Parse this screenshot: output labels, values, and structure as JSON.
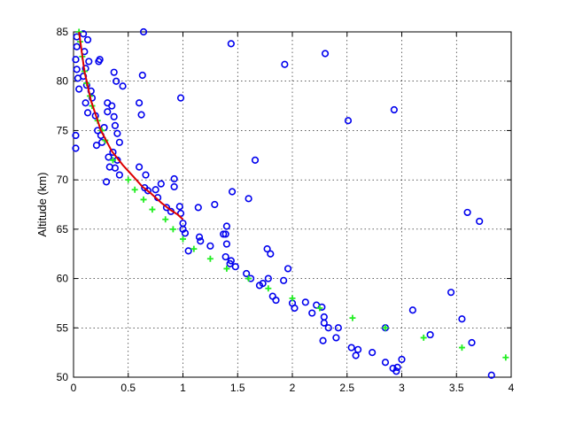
{
  "chart_data": {
    "type": "scatter",
    "title": "",
    "xlabel": "",
    "ylabel": "Altitude  (km)",
    "xlim": [
      0,
      4
    ],
    "ylim": [
      50,
      85
    ],
    "xticks": [
      0,
      0.5,
      1,
      1.5,
      2,
      2.5,
      3,
      3.5,
      4
    ],
    "yticks": [
      50,
      55,
      60,
      65,
      70,
      75,
      80,
      85
    ],
    "xtick_labels": [
      "0",
      "0.5",
      "1",
      "1.5",
      "2",
      "2.5",
      "3",
      "3.5",
      "4"
    ],
    "ytick_labels": [
      "50",
      "55",
      "60",
      "65",
      "70",
      "75",
      "80",
      "85"
    ],
    "grid": true,
    "legend": "none",
    "series": [
      {
        "marker": "circle",
        "color": "#0000ee",
        "points": [
          [
            0.03,
            84.5
          ],
          [
            0.03,
            83.5
          ],
          [
            0.02,
            82.2
          ],
          [
            0.03,
            81.2
          ],
          [
            0.04,
            80.3
          ],
          [
            0.05,
            79.2
          ],
          [
            0.02,
            74.5
          ],
          [
            0.02,
            73.2
          ],
          [
            0.09,
            84.8
          ],
          [
            0.1,
            83.0
          ],
          [
            0.13,
            84.2
          ],
          [
            0.14,
            82.0
          ],
          [
            0.11,
            81.3
          ],
          [
            0.09,
            80.5
          ],
          [
            0.12,
            79.6
          ],
          [
            0.16,
            79.0
          ],
          [
            0.17,
            78.3
          ],
          [
            0.11,
            77.8
          ],
          [
            0.13,
            76.8
          ],
          [
            0.2,
            76.5
          ],
          [
            0.22,
            75.0
          ],
          [
            0.28,
            75.3
          ],
          [
            0.25,
            74.5
          ],
          [
            0.21,
            73.5
          ],
          [
            0.26,
            73.8
          ],
          [
            0.23,
            82.0
          ],
          [
            0.24,
            82.2
          ],
          [
            0.31,
            77.8
          ],
          [
            0.35,
            77.5
          ],
          [
            0.31,
            76.9
          ],
          [
            0.37,
            76.4
          ],
          [
            0.38,
            75.5
          ],
          [
            0.4,
            74.7
          ],
          [
            0.42,
            73.8
          ],
          [
            0.36,
            72.8
          ],
          [
            0.32,
            72.3
          ],
          [
            0.33,
            71.3
          ],
          [
            0.4,
            72.0
          ],
          [
            0.38,
            71.2
          ],
          [
            0.42,
            70.5
          ],
          [
            0.3,
            69.8
          ],
          [
            0.37,
            80.9
          ],
          [
            0.39,
            80.0
          ],
          [
            0.45,
            79.5
          ],
          [
            0.64,
            85.0
          ],
          [
            0.63,
            80.6
          ],
          [
            0.98,
            78.3
          ],
          [
            0.6,
            77.8
          ],
          [
            0.62,
            76.6
          ],
          [
            0.6,
            71.3
          ],
          [
            0.66,
            70.5
          ],
          [
            0.65,
            69.2
          ],
          [
            0.68,
            68.9
          ],
          [
            0.75,
            69.0
          ],
          [
            0.8,
            69.6
          ],
          [
            0.77,
            68.2
          ],
          [
            0.85,
            67.2
          ],
          [
            0.89,
            66.8
          ],
          [
            0.92,
            69.3
          ],
          [
            0.92,
            70.1
          ],
          [
            0.97,
            67.3
          ],
          [
            0.98,
            66.6
          ],
          [
            1.0,
            65.6
          ],
          [
            1.0,
            65.0
          ],
          [
            1.02,
            64.6
          ],
          [
            1.05,
            62.8
          ],
          [
            1.15,
            64.2
          ],
          [
            1.16,
            63.8
          ],
          [
            1.14,
            67.2
          ],
          [
            1.25,
            63.3
          ],
          [
            1.29,
            67.5
          ],
          [
            1.37,
            64.5
          ],
          [
            1.4,
            65.3
          ],
          [
            1.39,
            64.5
          ],
          [
            1.4,
            63.5
          ],
          [
            1.39,
            62.2
          ],
          [
            1.44,
            61.8
          ],
          [
            1.43,
            61.5
          ],
          [
            1.45,
            68.8
          ],
          [
            1.48,
            61.2
          ],
          [
            1.44,
            83.8
          ],
          [
            1.58,
            60.5
          ],
          [
            1.6,
            68.1
          ],
          [
            1.66,
            72.0
          ],
          [
            1.62,
            60.0
          ],
          [
            1.7,
            59.3
          ],
          [
            1.73,
            59.5
          ],
          [
            1.78,
            60.0
          ],
          [
            1.77,
            63.0
          ],
          [
            1.8,
            62.5
          ],
          [
            1.82,
            58.2
          ],
          [
            1.85,
            57.8
          ],
          [
            1.92,
            59.8
          ],
          [
            1.96,
            61.0
          ],
          [
            1.93,
            81.7
          ],
          [
            2.0,
            57.5
          ],
          [
            2.02,
            57.0
          ],
          [
            2.12,
            57.6
          ],
          [
            2.18,
            56.5
          ],
          [
            2.22,
            57.3
          ],
          [
            2.27,
            57.1
          ],
          [
            2.3,
            82.8
          ],
          [
            2.29,
            56.1
          ],
          [
            2.29,
            55.5
          ],
          [
            2.33,
            55.0
          ],
          [
            2.4,
            54.0
          ],
          [
            2.42,
            55.0
          ],
          [
            2.28,
            53.7
          ],
          [
            2.51,
            76.0
          ],
          [
            2.54,
            53.0
          ],
          [
            2.58,
            52.2
          ],
          [
            2.6,
            52.8
          ],
          [
            2.73,
            52.5
          ],
          [
            2.85,
            55.0
          ],
          [
            2.85,
            51.5
          ],
          [
            2.93,
            77.1
          ],
          [
            2.92,
            50.9
          ],
          [
            2.95,
            50.6
          ],
          [
            2.96,
            51.0
          ],
          [
            3.0,
            51.8
          ],
          [
            3.1,
            56.8
          ],
          [
            3.26,
            54.3
          ],
          [
            3.45,
            58.6
          ],
          [
            3.55,
            55.9
          ],
          [
            3.6,
            66.7
          ],
          [
            3.64,
            53.5
          ],
          [
            3.71,
            65.8
          ],
          [
            3.82,
            50.2
          ]
        ]
      },
      {
        "marker": "plus",
        "color": "#22ee22",
        "points": [
          [
            0.05,
            85.0
          ],
          [
            0.06,
            84.0
          ],
          [
            0.08,
            82.5
          ],
          [
            0.1,
            81.0
          ],
          [
            0.12,
            79.8
          ],
          [
            0.15,
            78.5
          ],
          [
            0.17,
            77.5
          ],
          [
            0.22,
            76.0
          ],
          [
            0.26,
            75.0
          ],
          [
            0.29,
            74.0
          ],
          [
            0.36,
            72.0
          ],
          [
            0.5,
            70.0
          ],
          [
            0.56,
            69.0
          ],
          [
            0.64,
            68.0
          ],
          [
            0.72,
            67.0
          ],
          [
            0.84,
            66.0
          ],
          [
            0.91,
            65.0
          ],
          [
            1.0,
            64.0
          ],
          [
            1.1,
            63.0
          ],
          [
            1.25,
            62.0
          ],
          [
            1.4,
            61.0
          ],
          [
            1.6,
            60.0
          ],
          [
            1.78,
            59.0
          ],
          [
            2.0,
            58.0
          ],
          [
            2.25,
            57.0
          ],
          [
            2.55,
            56.0
          ],
          [
            2.85,
            55.0
          ],
          [
            3.2,
            54.0
          ],
          [
            3.55,
            53.0
          ],
          [
            3.95,
            52.0
          ]
        ]
      },
      {
        "marker": "line",
        "color": "#dd0000",
        "points": [
          [
            0.05,
            85.0
          ],
          [
            0.1,
            81.0
          ],
          [
            0.16,
            78.0
          ],
          [
            0.25,
            75.0
          ],
          [
            0.35,
            72.9
          ],
          [
            0.45,
            71.5
          ],
          [
            0.55,
            70.3
          ],
          [
            0.63,
            69.3
          ],
          [
            0.71,
            68.6
          ],
          [
            0.8,
            67.7
          ],
          [
            0.88,
            67.0
          ],
          [
            0.95,
            66.5
          ],
          [
            1.0,
            66.0
          ]
        ]
      }
    ]
  }
}
